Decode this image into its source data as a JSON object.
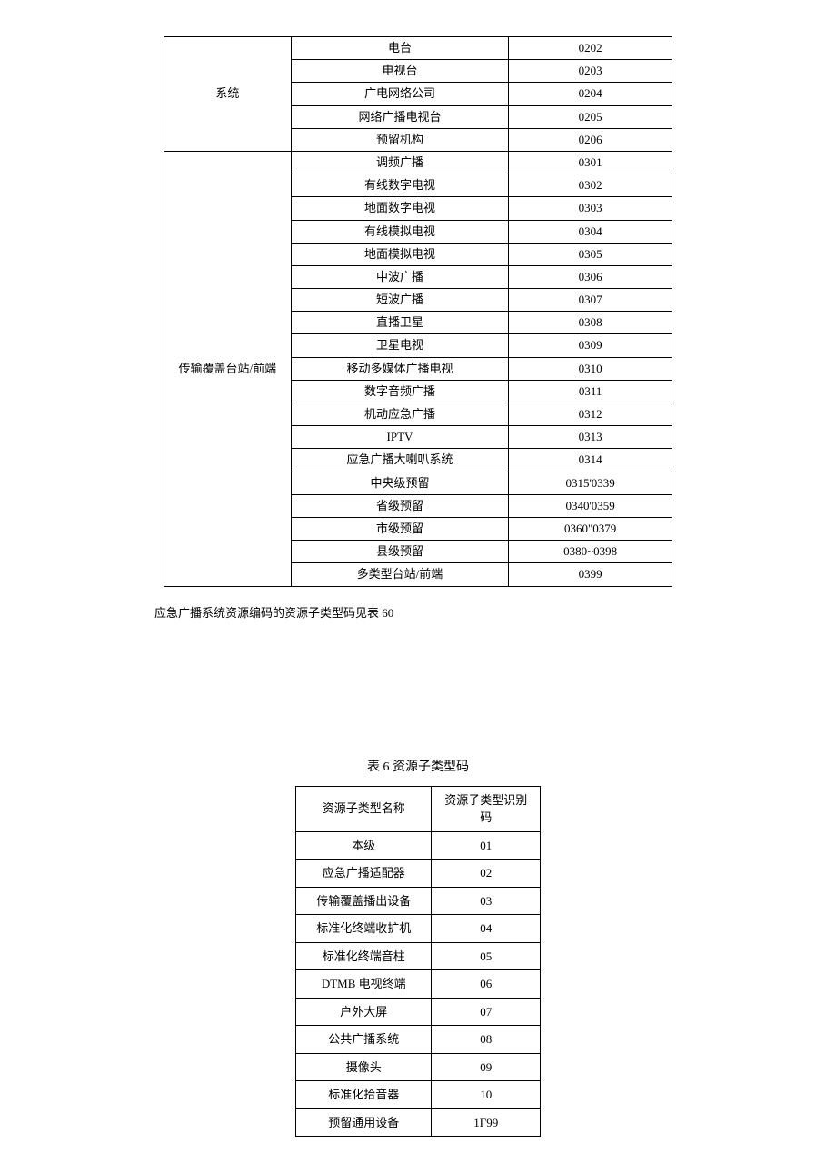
{
  "table1": {
    "groups": [
      {
        "category": "系统",
        "rows": [
          {
            "name": "电台",
            "code": "0202"
          },
          {
            "name": "电视台",
            "code": "0203"
          },
          {
            "name": "广电网络公司",
            "code": "0204"
          },
          {
            "name": "网络广播电视台",
            "code": "0205"
          },
          {
            "name": "预留机构",
            "code": "0206"
          }
        ]
      },
      {
        "category": "传输覆盖台站/前端",
        "rows": [
          {
            "name": "调频广播",
            "code": "0301"
          },
          {
            "name": "有线数字电视",
            "code": "0302"
          },
          {
            "name": "地面数字电视",
            "code": "0303"
          },
          {
            "name": "有线模拟电视",
            "code": "0304"
          },
          {
            "name": "地面模拟电视",
            "code": "0305"
          },
          {
            "name": "中波广播",
            "code": "0306"
          },
          {
            "name": "短波广播",
            "code": "0307"
          },
          {
            "name": "直播卫星",
            "code": "0308"
          },
          {
            "name": "卫星电视",
            "code": "0309"
          },
          {
            "name": "移动多媒体广播电视",
            "code": "0310"
          },
          {
            "name": "数字音频广播",
            "code": "0311"
          },
          {
            "name": "机动应急广播",
            "code": "0312"
          },
          {
            "name": "IPTV",
            "code": "0313"
          },
          {
            "name": "应急广播大喇叭系统",
            "code": "0314"
          },
          {
            "name": "中央级预留",
            "code": "0315'0339"
          },
          {
            "name": "省级预留",
            "code": "0340'0359"
          },
          {
            "name": "市级预留",
            "code": "0360\"0379"
          },
          {
            "name": "县级预留",
            "code": "0380~0398"
          },
          {
            "name": "多类型台站/前端",
            "code": "0399"
          }
        ]
      }
    ]
  },
  "note": "应急广播系统资源编码的资源子类型码见表 60",
  "table6": {
    "title": "表 6 资源子类型码",
    "headers": {
      "name": "资源子类型名称",
      "code": "资源子类型识别码"
    },
    "rows": [
      {
        "name": "本级",
        "code": "01"
      },
      {
        "name": "应急广播适配器",
        "code": "02"
      },
      {
        "name": "传输覆盖播出设备",
        "code": "03"
      },
      {
        "name": "标准化终端收扩机",
        "code": "04"
      },
      {
        "name": "标准化终端音柱",
        "code": "05"
      },
      {
        "name": "DTMB 电视终端",
        "code": "06"
      },
      {
        "name": "户外大屏",
        "code": "07"
      },
      {
        "name": "公共广播系统",
        "code": "08"
      },
      {
        "name": "摄像头",
        "code": "09"
      },
      {
        "name": "标准化拾音器",
        "code": "10"
      },
      {
        "name": "预留通用设备",
        "code": "1Γ99"
      }
    ]
  }
}
